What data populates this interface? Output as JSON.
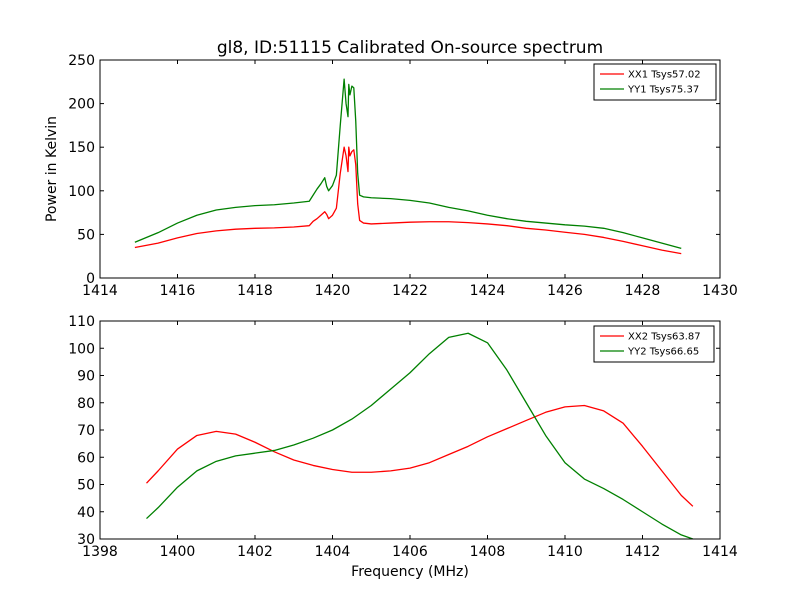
{
  "title": "gl8, ID:51115 Calibrated On-source spectrum",
  "colors": {
    "red": "#ff0000",
    "green": "#008000",
    "axis": "#000000",
    "background": "#ffffff"
  },
  "chart_data": [
    {
      "type": "line",
      "title": "gl8, ID:51115 Calibrated On-source spectrum",
      "xlabel": "",
      "ylabel": "Power in Kelvin",
      "xlim": [
        1414,
        1430
      ],
      "ylim": [
        0,
        250
      ],
      "xticks": [
        1414,
        1416,
        1418,
        1420,
        1422,
        1424,
        1426,
        1428,
        1430
      ],
      "yticks": [
        0,
        50,
        100,
        150,
        200,
        250
      ],
      "grid": false,
      "legend": "top-right",
      "series": [
        {
          "name": "XX1 Tsys57.02",
          "color": "#ff0000",
          "x": [
            1414.9,
            1415.5,
            1416.0,
            1416.5,
            1417.0,
            1417.5,
            1418.0,
            1418.5,
            1419.0,
            1419.4,
            1419.5,
            1419.6,
            1419.7,
            1419.8,
            1419.85,
            1419.9,
            1420.0,
            1420.1,
            1420.2,
            1420.3,
            1420.35,
            1420.4,
            1420.42,
            1420.45,
            1420.5,
            1420.55,
            1420.6,
            1420.65,
            1420.7,
            1420.8,
            1421.0,
            1421.5,
            1422.0,
            1422.5,
            1423.0,
            1423.5,
            1424.0,
            1424.5,
            1425.0,
            1425.5,
            1426.0,
            1426.5,
            1427.0,
            1427.5,
            1428.0,
            1428.5,
            1429.0
          ],
          "values": [
            35,
            40,
            46,
            51,
            54,
            56,
            57,
            57.5,
            58.5,
            60,
            65,
            68,
            72,
            76,
            73,
            68,
            72,
            80,
            120,
            150,
            140,
            122,
            150,
            140,
            145,
            147,
            130,
            85,
            66,
            63,
            62,
            63,
            64,
            64.5,
            64.5,
            63.5,
            62,
            60,
            57,
            55,
            52.5,
            50,
            46.5,
            42,
            37,
            32,
            28
          ]
        },
        {
          "name": "YY1 Tsys75.37",
          "color": "#008000",
          "x": [
            1414.9,
            1415.5,
            1416.0,
            1416.5,
            1417.0,
            1417.5,
            1418.0,
            1418.5,
            1419.0,
            1419.4,
            1419.5,
            1419.6,
            1419.7,
            1419.8,
            1419.85,
            1419.9,
            1420.0,
            1420.1,
            1420.2,
            1420.3,
            1420.35,
            1420.4,
            1420.42,
            1420.45,
            1420.5,
            1420.55,
            1420.6,
            1420.65,
            1420.7,
            1420.8,
            1421.0,
            1421.5,
            1422.0,
            1422.5,
            1423.0,
            1423.5,
            1424.0,
            1424.5,
            1425.0,
            1425.5,
            1426.0,
            1426.5,
            1427.0,
            1427.5,
            1428.0,
            1428.5,
            1429.0
          ],
          "values": [
            41,
            52,
            63,
            72,
            78,
            81,
            83,
            84,
            86,
            88,
            95,
            102,
            108,
            115,
            105,
            100,
            106,
            118,
            175,
            228,
            200,
            185,
            222,
            210,
            220,
            218,
            180,
            120,
            95,
            93,
            92,
            91,
            89,
            86,
            81,
            77,
            72,
            68,
            65,
            63,
            61,
            59.5,
            57,
            52,
            46,
            40,
            34
          ]
        }
      ]
    },
    {
      "type": "line",
      "title": "",
      "xlabel": "Frequency (MHz)",
      "ylabel": "",
      "xlim": [
        1398,
        1414
      ],
      "ylim": [
        30,
        110
      ],
      "xticks": [
        1398,
        1400,
        1402,
        1404,
        1406,
        1408,
        1410,
        1412,
        1414
      ],
      "yticks": [
        30,
        40,
        50,
        60,
        70,
        80,
        90,
        100,
        110
      ],
      "grid": false,
      "legend": "top-right",
      "series": [
        {
          "name": "XX2 Tsys63.87",
          "color": "#ff0000",
          "x": [
            1399.2,
            1399.5,
            1400.0,
            1400.5,
            1401.0,
            1401.5,
            1402.0,
            1402.5,
            1403.0,
            1403.5,
            1404.0,
            1404.5,
            1405.0,
            1405.5,
            1406.0,
            1406.5,
            1407.0,
            1407.5,
            1408.0,
            1408.5,
            1409.0,
            1409.5,
            1410.0,
            1410.5,
            1411.0,
            1411.5,
            1412.0,
            1412.5,
            1413.0,
            1413.3
          ],
          "values": [
            50.5,
            55,
            63,
            68,
            69.5,
            68.5,
            65.5,
            62,
            59,
            57,
            55.5,
            54.5,
            54.5,
            55,
            56,
            58,
            61,
            64,
            67.5,
            70.5,
            73.5,
            76.5,
            78.5,
            79,
            77,
            72.5,
            64,
            55,
            46,
            42
          ]
        },
        {
          "name": "YY2 Tsys66.65",
          "color": "#008000",
          "x": [
            1399.2,
            1399.5,
            1400.0,
            1400.5,
            1401.0,
            1401.5,
            1402.0,
            1402.5,
            1403.0,
            1403.5,
            1404.0,
            1404.5,
            1405.0,
            1405.5,
            1406.0,
            1406.5,
            1407.0,
            1407.5,
            1408.0,
            1408.5,
            1409.0,
            1409.5,
            1410.0,
            1410.5,
            1411.0,
            1411.5,
            1412.0,
            1412.5,
            1413.0,
            1413.3
          ],
          "values": [
            37.5,
            41.5,
            49,
            55,
            58.5,
            60.5,
            61.5,
            62.5,
            64.5,
            67,
            70,
            74,
            79,
            85,
            91,
            98,
            104,
            105.5,
            102,
            92,
            80,
            68,
            58,
            52,
            48.5,
            44.5,
            40,
            35.5,
            31.5,
            30
          ]
        }
      ]
    }
  ]
}
